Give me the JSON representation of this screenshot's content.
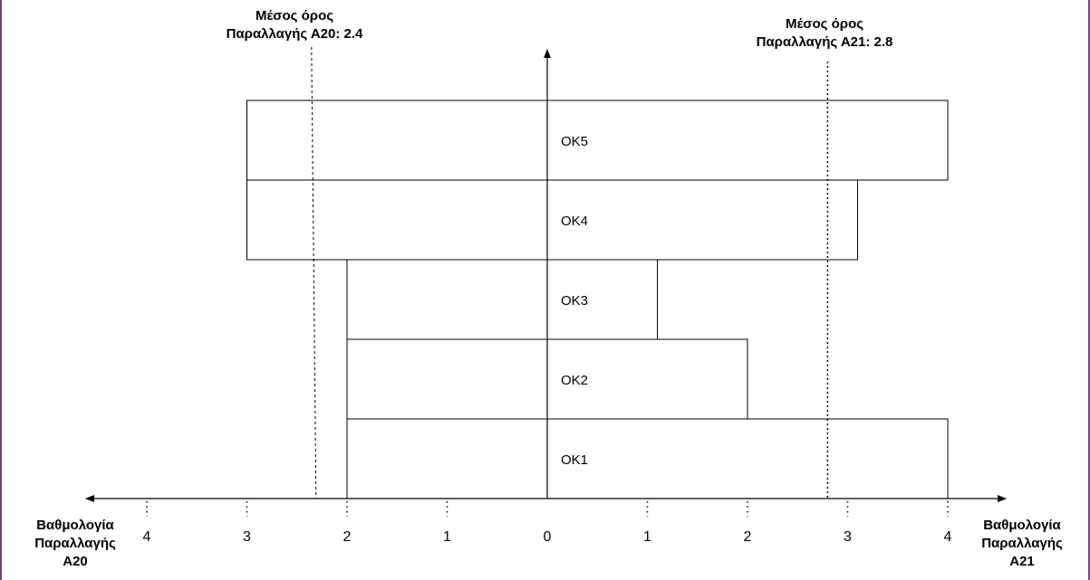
{
  "chart_data": {
    "type": "bar",
    "orientation": "diverging-horizontal",
    "categories": [
      "ΟΚ1",
      "ΟΚ2",
      "ΟΚ3",
      "ΟΚ4",
      "ΟΚ5"
    ],
    "series": [
      {
        "side": "left",
        "values": [
          2,
          2,
          2,
          3,
          3
        ]
      },
      {
        "side": "right",
        "values": [
          4,
          2,
          1.1,
          3.1,
          4
        ]
      }
    ],
    "left_ticks": [
      "4",
      "3",
      "2",
      "1",
      "0"
    ],
    "right_ticks": [
      "1",
      "2",
      "3",
      "4"
    ],
    "xlabel_left": [
      "Βαθμολογία",
      "Παραλλαγής",
      "Α20"
    ],
    "xlabel_right": [
      "Βαθμολογία",
      "Παραλλαγής",
      "Α21"
    ],
    "annotations": [
      {
        "side": "left",
        "value": 2.4,
        "lines": [
          "Μέσος όρος",
          "Παραλλαγής Α20: 2.4"
        ]
      },
      {
        "side": "right",
        "value": 2.8,
        "lines": [
          "Μέσος όρος",
          "Παραλλαγής  Α21: 2.8"
        ]
      }
    ],
    "xlim": [
      -4,
      4
    ],
    "grid": false
  }
}
